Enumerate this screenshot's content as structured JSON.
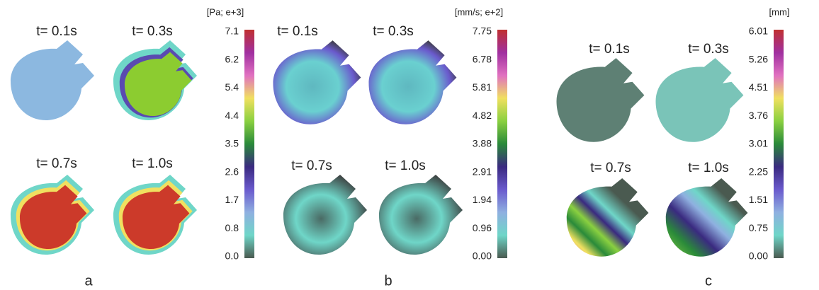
{
  "panels": [
    {
      "letter": "a",
      "times": [
        "t= 0.1s",
        "t= 0.3s",
        "t= 0.7s",
        "t= 1.0s"
      ],
      "colorbar": {
        "unit": "[Pa; e+3]",
        "ticks": [
          "7.1",
          "6.2",
          "5.4",
          "4.4",
          "3.5",
          "2.6",
          "1.7",
          "0.8",
          "0.0"
        ]
      }
    },
    {
      "letter": "b",
      "times": [
        "t= 0.1s",
        "t= 0.3s",
        "t= 0.7s",
        "t= 1.0s"
      ],
      "colorbar": {
        "unit": "[mm/s; e+2]",
        "ticks": [
          "7.75",
          "6.78",
          "5.81",
          "4.82",
          "3.88",
          "2.91",
          "1.94",
          "0.96",
          "0.00"
        ]
      }
    },
    {
      "letter": "c",
      "times": [
        "t= 0.1s",
        "t= 0.3s",
        "t= 0.7s",
        "t= 1.0s"
      ],
      "colorbar": {
        "unit": "[mm]",
        "ticks": [
          "6.01",
          "5.26",
          "4.51",
          "3.76",
          "3.01",
          "2.25",
          "1.51",
          "0.75",
          "0.00"
        ]
      }
    }
  ]
}
